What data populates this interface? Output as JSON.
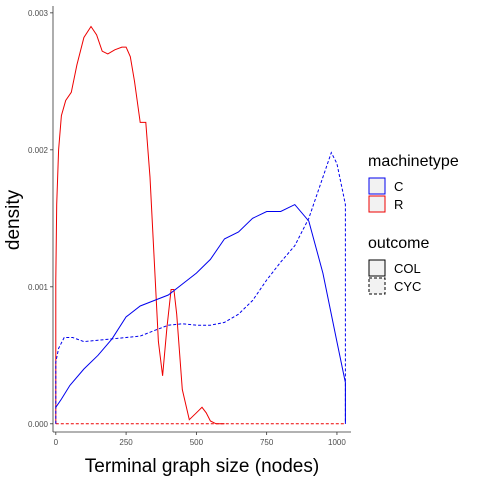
{
  "chart_data": {
    "type": "line",
    "title": "",
    "xlabel": "Terminal graph size (nodes)",
    "ylabel": "density",
    "xlim": [
      -10,
      1050
    ],
    "ylim": [
      -6e-05,
      0.00305
    ],
    "x_ticks": [
      0,
      250,
      500,
      750,
      1000
    ],
    "y_ticks": [
      0.0,
      0.001,
      0.002,
      0.003
    ],
    "y_tick_labels": [
      "0.000",
      "0.001",
      "0.002",
      "0.003"
    ],
    "grid": false,
    "legend_position": "right",
    "legends": [
      {
        "title": "machinetype",
        "entries": [
          {
            "label": "C",
            "color": "#0000ee"
          },
          {
            "label": "R",
            "color": "#ee0000"
          }
        ]
      },
      {
        "title": "outcome",
        "entries": [
          {
            "label": "COL",
            "linetype": "solid"
          },
          {
            "label": "CYC",
            "linetype": "dashed"
          }
        ]
      }
    ],
    "series": [
      {
        "machinetype": "R",
        "outcome": "COL",
        "color": "#ee0000",
        "linetype": "solid",
        "points": [
          [
            0,
            0
          ],
          [
            0,
            0.00105
          ],
          [
            3,
            0.0016
          ],
          [
            10,
            0.002
          ],
          [
            20,
            0.00225
          ],
          [
            35,
            0.00236
          ],
          [
            55,
            0.00242
          ],
          [
            75,
            0.00262
          ],
          [
            100,
            0.00282
          ],
          [
            125,
            0.0029
          ],
          [
            145,
            0.00284
          ],
          [
            165,
            0.00272
          ],
          [
            185,
            0.0027
          ],
          [
            210,
            0.00273
          ],
          [
            235,
            0.00275
          ],
          [
            250,
            0.00275
          ],
          [
            265,
            0.00268
          ],
          [
            280,
            0.0025
          ],
          [
            300,
            0.0022
          ],
          [
            320,
            0.0022
          ],
          [
            335,
            0.0018
          ],
          [
            350,
            0.0012
          ],
          [
            365,
            0.0006
          ],
          [
            380,
            0.00035
          ],
          [
            395,
            0.0007
          ],
          [
            410,
            0.00098
          ],
          [
            420,
            0.00098
          ],
          [
            430,
            0.0008
          ],
          [
            450,
            0.00025
          ],
          [
            475,
            3e-05
          ],
          [
            500,
            8e-05
          ],
          [
            520,
            0.00012
          ],
          [
            535,
            8e-05
          ],
          [
            550,
            2e-05
          ],
          [
            570,
            0
          ],
          [
            600,
            0
          ]
        ]
      },
      {
        "machinetype": "R",
        "outcome": "CYC",
        "color": "#ee0000",
        "linetype": "dashed",
        "points": [
          [
            0,
            0
          ],
          [
            1030,
            0
          ]
        ]
      },
      {
        "machinetype": "C",
        "outcome": "COL",
        "color": "#0000ee",
        "linetype": "solid",
        "points": [
          [
            0,
            0.00012
          ],
          [
            20,
            0.00018
          ],
          [
            50,
            0.00028
          ],
          [
            100,
            0.0004
          ],
          [
            150,
            0.0005
          ],
          [
            200,
            0.00062
          ],
          [
            250,
            0.00078
          ],
          [
            300,
            0.00086
          ],
          [
            350,
            0.0009
          ],
          [
            400,
            0.00094
          ],
          [
            450,
            0.00102
          ],
          [
            500,
            0.0011
          ],
          [
            550,
            0.0012
          ],
          [
            600,
            0.00135
          ],
          [
            650,
            0.0014
          ],
          [
            700,
            0.0015
          ],
          [
            750,
            0.00155
          ],
          [
            800,
            0.00155
          ],
          [
            850,
            0.0016
          ],
          [
            900,
            0.00148
          ],
          [
            950,
            0.0011
          ],
          [
            1000,
            0.0006
          ],
          [
            1030,
            0.0003
          ],
          [
            1030,
            0
          ]
        ]
      },
      {
        "machinetype": "C",
        "outcome": "CYC",
        "color": "#0000ee",
        "linetype": "dashed",
        "points": [
          [
            0,
            0
          ],
          [
            0,
            0.00045
          ],
          [
            10,
            0.00055
          ],
          [
            30,
            0.00063
          ],
          [
            60,
            0.00063
          ],
          [
            100,
            0.0006
          ],
          [
            150,
            0.00061
          ],
          [
            200,
            0.00062
          ],
          [
            250,
            0.00063
          ],
          [
            300,
            0.00064
          ],
          [
            350,
            0.00068
          ],
          [
            400,
            0.00072
          ],
          [
            450,
            0.00073
          ],
          [
            500,
            0.00072
          ],
          [
            550,
            0.00072
          ],
          [
            600,
            0.00074
          ],
          [
            650,
            0.0008
          ],
          [
            700,
            0.0009
          ],
          [
            750,
            0.00105
          ],
          [
            800,
            0.00118
          ],
          [
            850,
            0.0013
          ],
          [
            900,
            0.0015
          ],
          [
            950,
            0.0018
          ],
          [
            980,
            0.00198
          ],
          [
            1000,
            0.0019
          ],
          [
            1020,
            0.0017
          ],
          [
            1030,
            0.0016
          ],
          [
            1030,
            0
          ]
        ]
      }
    ]
  }
}
